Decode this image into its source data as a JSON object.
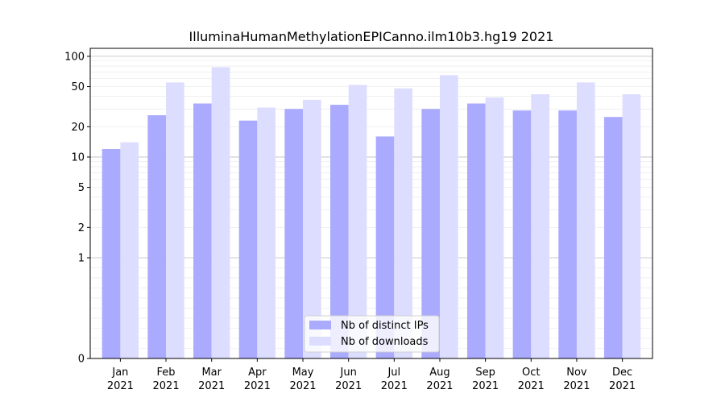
{
  "chart_data": {
    "type": "bar",
    "title": "IlluminaHumanMethylationEPICanno.ilm10b3.hg19 2021",
    "xlabel": "",
    "ylabel": "",
    "yscale": "symlog",
    "ylim": [
      0,
      120
    ],
    "yticks": [
      0,
      1,
      2,
      5,
      10,
      20,
      50,
      100
    ],
    "ytick_labels": [
      "0",
      "1",
      "2",
      "5",
      "10",
      "20",
      "50",
      "100"
    ],
    "categories": [
      "Jan\n2021",
      "Feb\n2021",
      "Mar\n2021",
      "Apr\n2021",
      "May\n2021",
      "Jun\n2021",
      "Jul\n2021",
      "Aug\n2021",
      "Sep\n2021",
      "Oct\n2021",
      "Nov\n2021",
      "Dec\n2021"
    ],
    "series": [
      {
        "name": "Nb of distinct IPs",
        "color": "#aaaaff",
        "values": [
          12,
          26,
          34,
          23,
          30,
          33,
          16,
          30,
          34,
          29,
          29,
          25
        ]
      },
      {
        "name": "Nb of downloads",
        "color": "#ddddff",
        "values": [
          14,
          55,
          78,
          31,
          37,
          52,
          48,
          65,
          39,
          42,
          55,
          42
        ]
      }
    ],
    "grid": true,
    "legend_position": "bottom-center"
  }
}
